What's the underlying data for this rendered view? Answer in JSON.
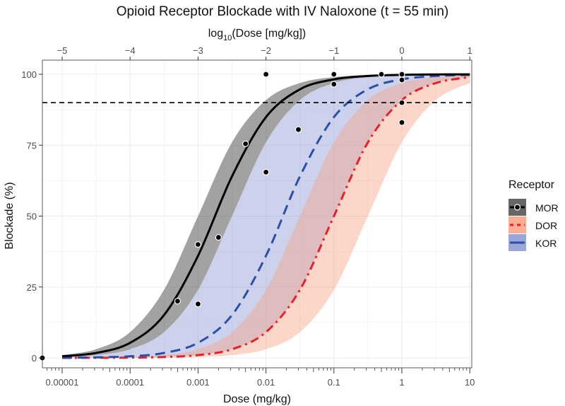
{
  "chart_data": {
    "type": "line",
    "title": "Opioid Receptor Blockade with IV Naloxone (t = 55 min)",
    "xlabel": "Dose (mg/kg)",
    "ylabel": "Blockade (%)",
    "x2label_prefix": "log",
    "x2label_sub": "10",
    "x2label_suffix": "(Dose [mg/kg])",
    "x_scale": "log10",
    "xlim": [
      1e-05,
      10
    ],
    "ylim": [
      0,
      100
    ],
    "x_ticks": [
      1e-05,
      0.0001,
      0.001,
      0.01,
      0.1,
      1,
      10
    ],
    "x_tick_labels": [
      "0.00001",
      "0.0001",
      "0.001",
      "0.01",
      "0.1",
      "1",
      "10"
    ],
    "x2_ticks": [
      -5,
      -4,
      -3,
      -2,
      -1,
      0,
      1
    ],
    "x2_tick_labels": [
      "−5",
      "−4",
      "−3",
      "−2",
      "−1",
      "0",
      "1"
    ],
    "y_ticks": [
      0,
      25,
      50,
      75,
      100
    ],
    "y_tick_labels": [
      "0",
      "25",
      "50",
      "75",
      "100"
    ],
    "grid": true,
    "reference_line": {
      "y": 90,
      "style": "dashed",
      "color": "#000000"
    },
    "legend": {
      "title": "Receptor",
      "position": "right"
    },
    "x": [
      1e-05,
      3.16e-05,
      0.0001,
      0.000316,
      0.001,
      0.00316,
      0.01,
      0.0316,
      0.1,
      0.316,
      1,
      3.16,
      10
    ],
    "series": [
      {
        "name": "MOR",
        "color": "#000000",
        "band_color": "#555555",
        "dash": "solid",
        "values": [
          0.56,
          1.75,
          5.32,
          15.1,
          36.0,
          64.0,
          84.9,
          94.7,
          98.2,
          99.4,
          99.8,
          99.94,
          99.98
        ],
        "lower": [
          0.32,
          0.99,
          3.06,
          9.09,
          24.0,
          50,
          76.0,
          90.9,
          96.9,
          99.0,
          99.7,
          99.9,
          99.97
        ],
        "upper": [
          0.99,
          3.06,
          9.09,
          24.0,
          50,
          76.0,
          90.9,
          96.9,
          99.0,
          99.7,
          99.9,
          99.97,
          99.99
        ]
      },
      {
        "name": "DOR",
        "color": "#e8202a",
        "band_color": "#f7a488",
        "dash": "dashdot",
        "values": [
          0.01,
          0.03,
          0.1,
          0.32,
          0.99,
          3.06,
          9.09,
          24.0,
          50,
          76.0,
          90.9,
          96.9,
          99.0
        ],
        "lower": [
          0.003,
          0.01,
          0.03,
          0.1,
          0.32,
          0.99,
          3.06,
          9.09,
          24.0,
          50,
          76.0,
          90.9,
          96.9
        ],
        "upper": [
          0.03,
          0.1,
          0.32,
          0.99,
          3.06,
          9.09,
          24.0,
          50,
          76.0,
          90.9,
          96.9,
          99.0,
          99.7
        ]
      },
      {
        "name": "KOR",
        "color": "#2a4fa8",
        "band_color": "#8f9bd4",
        "dash": "dashed",
        "values": [
          0.056,
          0.18,
          0.56,
          1.75,
          5.32,
          15.1,
          36.0,
          64.0,
          84.9,
          94.7,
          98.2,
          99.4,
          99.8
        ],
        "lower": [
          0.01,
          0.03,
          0.1,
          0.32,
          0.99,
          3.06,
          9.09,
          24.0,
          50,
          76.0,
          90.9,
          96.9,
          99.0
        ],
        "upper": [
          0.32,
          0.99,
          3.06,
          9.09,
          24.0,
          50,
          76.0,
          90.9,
          96.9,
          99.0,
          99.7,
          99.9,
          99.97
        ]
      }
    ],
    "points": [
      {
        "series": "MOR",
        "x": 5e-06,
        "y": 0
      },
      {
        "series": "MOR",
        "x": 0.0005,
        "y": 20
      },
      {
        "series": "MOR",
        "x": 0.001,
        "y": 40
      },
      {
        "series": "MOR",
        "x": 0.001,
        "y": 19
      },
      {
        "series": "MOR",
        "x": 0.002,
        "y": 42.5
      },
      {
        "series": "MOR",
        "x": 0.005,
        "y": 75.5
      },
      {
        "series": "MOR",
        "x": 0.01,
        "y": 100
      },
      {
        "series": "MOR",
        "x": 0.01,
        "y": 65.5
      },
      {
        "series": "MOR",
        "x": 0.03,
        "y": 80.5
      },
      {
        "series": "MOR",
        "x": 0.1,
        "y": 100
      },
      {
        "series": "MOR",
        "x": 0.1,
        "y": 96.5
      },
      {
        "series": "MOR",
        "x": 0.5,
        "y": 100
      },
      {
        "series": "MOR",
        "x": 1,
        "y": 100
      },
      {
        "series": "MOR",
        "x": 1,
        "y": 98
      },
      {
        "series": "MOR",
        "x": 1,
        "y": 90
      },
      {
        "series": "MOR",
        "x": 1,
        "y": 83
      }
    ]
  }
}
